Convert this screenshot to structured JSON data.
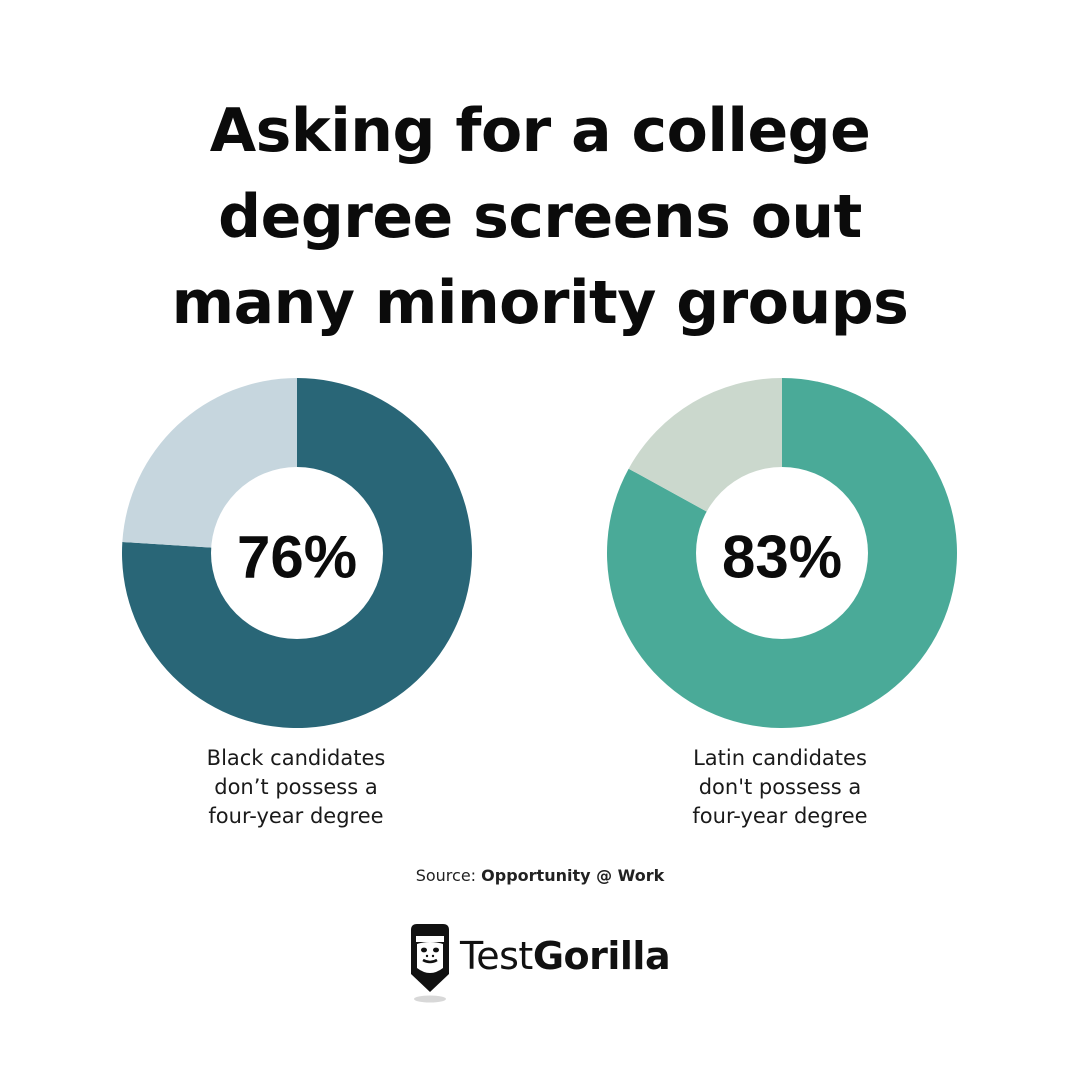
{
  "title_lines": [
    "Asking for a college",
    "degree screens out",
    "many minority groups"
  ],
  "chart_data": [
    {
      "type": "pie",
      "donut": true,
      "center_label": "76%",
      "values": [
        76,
        24
      ],
      "colors": [
        "#296677",
        "#c6d6de"
      ],
      "caption": [
        "Black candidates",
        "don’t possess a",
        "four-year degree"
      ]
    },
    {
      "type": "pie",
      "donut": true,
      "center_label": "83%",
      "values": [
        83,
        17
      ],
      "colors": [
        "#4aaa98",
        "#cbd8cd"
      ],
      "caption": [
        "Latin candidates",
        "don't possess a",
        "four-year degree"
      ]
    }
  ],
  "source": {
    "prefix": "Source:",
    "name": "Opportunity @ Work"
  },
  "logo": {
    "text_light": "Test",
    "text_bold": "Gorilla",
    "icon": "gorilla-icon"
  }
}
